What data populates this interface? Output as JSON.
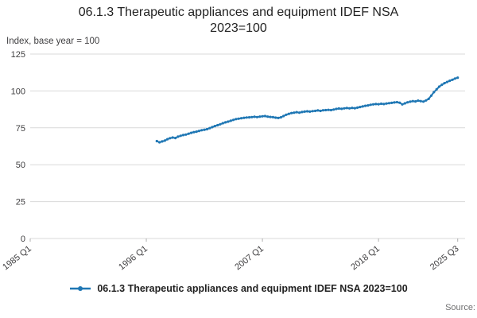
{
  "title": {
    "line1": "06.1.3 Therapeutic appliances and equipment IDEF NSA",
    "line2": "2023=100"
  },
  "axis_note": "Index, base year = 100",
  "legend": {
    "label": "06.1.3 Therapeutic appliances and equipment IDEF NSA 2023=100",
    "marker_color": "#1f77b4"
  },
  "source_label": "Source:",
  "chart_data": {
    "type": "line",
    "title": "06.1.3 Therapeutic appliances and equipment IDEF NSA 2023=100",
    "ylabel": "Index, base year = 100",
    "grid": "horizontal",
    "legend_position": "bottom",
    "line_color": "#1f77b4",
    "gridline_color": "#d9d9d9",
    "x_axis": {
      "min": 1985.0,
      "max": 2026.2,
      "ticks": [
        {
          "label": "1985 Q1",
          "year": 1985.0
        },
        {
          "label": "1996 Q1",
          "year": 1996.0
        },
        {
          "label": "2007 Q1",
          "year": 2007.0
        },
        {
          "label": "2018 Q1",
          "year": 2018.0
        },
        {
          "label": "2025 Q3",
          "year": 2025.5
        }
      ]
    },
    "y_axis": {
      "min": 0,
      "max": 125,
      "ticks": [
        0,
        25,
        50,
        75,
        100,
        125
      ]
    },
    "x_start": 1997.0,
    "x_step": 0.25,
    "series": [
      {
        "name": "06.1.3 Therapeutic appliances and equipment IDEF NSA 2023=100",
        "color": "#1f77b4",
        "values": [
          66.0,
          65.2,
          65.8,
          66.3,
          67.3,
          68.0,
          68.4,
          68.1,
          69.0,
          69.6,
          70.1,
          70.4,
          71.0,
          71.6,
          72.1,
          72.4,
          72.9,
          73.4,
          73.7,
          74.1,
          74.8,
          75.5,
          76.2,
          76.8,
          77.4,
          78.1,
          78.7,
          79.2,
          79.8,
          80.4,
          80.9,
          81.2,
          81.5,
          81.8,
          82.0,
          82.1,
          82.3,
          82.5,
          82.3,
          82.6,
          82.8,
          83.0,
          82.6,
          82.4,
          82.2,
          81.9,
          81.7,
          82.1,
          83.0,
          83.9,
          84.5,
          85.0,
          85.3,
          85.6,
          85.3,
          85.7,
          86.0,
          86.2,
          86.0,
          86.3,
          86.5,
          86.8,
          86.5,
          86.9,
          87.0,
          87.2,
          87.0,
          87.4,
          87.8,
          88.1,
          87.9,
          88.2,
          88.4,
          88.2,
          88.5,
          88.3,
          88.7,
          89.1,
          89.5,
          89.9,
          90.2,
          90.6,
          90.9,
          91.1,
          91.0,
          91.3,
          91.1,
          91.5,
          91.7,
          91.9,
          92.2,
          92.4,
          92.0,
          90.9,
          91.6,
          92.3,
          92.7,
          93.1,
          92.9,
          93.4,
          93.1,
          92.8,
          93.6,
          94.6,
          96.8,
          99.2,
          101.1,
          102.9,
          104.2,
          105.3,
          106.1,
          106.9,
          107.6,
          108.4,
          109.0
        ]
      }
    ]
  }
}
